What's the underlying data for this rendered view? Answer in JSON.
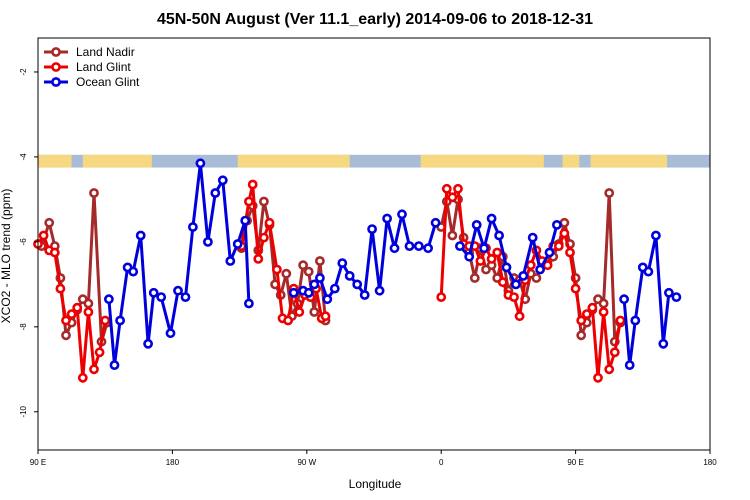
{
  "chart_data": {
    "type": "line",
    "title": "45N-50N August (Ver 11.1_early)   2014-09-06 to 2018-12-31",
    "xlabel": "Longitude",
    "ylabel": "XCO2 - MLO trend (ppm)",
    "xlim": [
      90,
      450
    ],
    "ylim": [
      -10.9,
      -1.2
    ],
    "x_ticks": [
      {
        "value": 90,
        "label": "90 E"
      },
      {
        "value": 162,
        "label": "180"
      },
      {
        "value": 234,
        "label": "90 W"
      },
      {
        "value": 306,
        "label": "0"
      },
      {
        "value": 378,
        "label": "90 E"
      },
      {
        "value": 450,
        "label": "180"
      }
    ],
    "y_ticks": [
      {
        "value": -2,
        "label": "-2"
      },
      {
        "value": -4,
        "label": "-4"
      },
      {
        "value": -6,
        "label": "-6"
      },
      {
        "value": -8,
        "label": "-8"
      },
      {
        "value": -10,
        "label": "-10"
      }
    ],
    "land_band": {
      "y_top": -3.95,
      "y_bottom": -4.25,
      "ocean_color": "#a8bcd8",
      "land_color": "#f5d880"
    },
    "legend_position": "top-left",
    "series": [
      {
        "name": "Land Nadir",
        "color": "#a52a2a",
        "segments": [
          [
            [
              92,
              -6.1
            ],
            [
              96,
              -5.55
            ],
            [
              99,
              -6.1
            ],
            [
              102,
              -6.85
            ],
            [
              105,
              -8.2
            ],
            [
              108,
              -7.9
            ],
            [
              111,
              -7.6
            ],
            [
              114,
              -7.35
            ],
            [
              117,
              -7.45
            ],
            [
              120,
              -4.85
            ],
            [
              124,
              -8.35
            ],
            [
              127,
              -7.9
            ]
          ],
          [
            [
              199,
              -6.15
            ],
            [
              202,
              -5.5
            ],
            [
              205,
              -5.15
            ],
            [
              208,
              -6.2
            ],
            [
              211,
              -5.05
            ],
            [
              214,
              -5.6
            ],
            [
              217,
              -7.0
            ],
            [
              220,
              -7.25
            ],
            [
              223,
              -6.75
            ],
            [
              226,
              -7.75
            ],
            [
              229,
              -7.45
            ],
            [
              232,
              -6.55
            ],
            [
              235,
              -6.7
            ],
            [
              238,
              -7.65
            ],
            [
              241,
              -6.45
            ],
            [
              244,
              -7.85
            ]
          ],
          [
            [
              306,
              -5.65
            ],
            [
              309,
              -5.05
            ],
            [
              312,
              -5.85
            ],
            [
              315,
              -5.0
            ],
            [
              318,
              -5.9
            ],
            [
              321,
              -6.25
            ],
            [
              324,
              -6.85
            ],
            [
              327,
              -6.15
            ],
            [
              330,
              -6.65
            ],
            [
              333,
              -6.55
            ],
            [
              336,
              -6.85
            ],
            [
              339,
              -6.35
            ],
            [
              342,
              -7.15
            ],
            [
              345,
              -6.85
            ],
            [
              348,
              -6.9
            ],
            [
              351,
              -7.35
            ],
            [
              354,
              -6.75
            ],
            [
              357,
              -6.85
            ],
            [
              360,
              -6.5
            ],
            [
              363,
              -6.45
            ],
            [
              366,
              -6.35
            ],
            [
              369,
              -6.05
            ],
            [
              372,
              -5.55
            ],
            [
              375,
              -6.05
            ],
            [
              378,
              -6.85
            ],
            [
              381,
              -8.2
            ],
            [
              384,
              -7.9
            ],
            [
              387,
              -7.6
            ],
            [
              390,
              -7.35
            ],
            [
              393,
              -7.45
            ],
            [
              396,
              -4.85
            ],
            [
              399,
              -8.35
            ],
            [
              402,
              -7.9
            ]
          ]
        ]
      },
      {
        "name": "Land Glint",
        "color": "#ee0000",
        "segments": [
          [
            [
              90,
              -6.05
            ],
            [
              93,
              -5.85
            ],
            [
              96,
              -6.2
            ],
            [
              99,
              -6.25
            ],
            [
              102,
              -7.1
            ],
            [
              105,
              -7.85
            ],
            [
              108,
              -7.7
            ],
            [
              111,
              -7.55
            ],
            [
              114,
              -9.2
            ],
            [
              117,
              -7.65
            ],
            [
              120,
              -9.0
            ],
            [
              123,
              -8.6
            ],
            [
              126,
              -7.85
            ]
          ],
          [
            [
              199,
              -6.1
            ],
            [
              203,
              -5.05
            ],
            [
              205,
              -4.65
            ],
            [
              208,
              -6.4
            ],
            [
              211,
              -5.9
            ],
            [
              214,
              -5.55
            ],
            [
              218,
              -6.65
            ],
            [
              221,
              -7.8
            ],
            [
              224,
              -7.85
            ],
            [
              227,
              -7.1
            ],
            [
              230,
              -7.65
            ],
            [
              233,
              -7.25
            ],
            [
              236,
              -7.3
            ],
            [
              239,
              -7.1
            ],
            [
              242,
              -7.8
            ],
            [
              244,
              -7.75
            ]
          ],
          [
            [
              306,
              -7.3
            ],
            [
              309,
              -4.75
            ],
            [
              312,
              -4.95
            ],
            [
              315,
              -4.75
            ],
            [
              318,
              -6.05
            ],
            [
              321,
              -6.1
            ],
            [
              324,
              -6.1
            ],
            [
              327,
              -6.45
            ],
            [
              330,
              -6.15
            ],
            [
              333,
              -6.4
            ],
            [
              336,
              -6.25
            ],
            [
              339,
              -6.95
            ],
            [
              342,
              -7.25
            ],
            [
              345,
              -7.3
            ],
            [
              348,
              -7.75
            ],
            [
              351,
              -6.9
            ],
            [
              354,
              -6.55
            ],
            [
              357,
              -6.2
            ],
            [
              360,
              -6.45
            ],
            [
              363,
              -6.55
            ],
            [
              366,
              -6.1
            ],
            [
              369,
              -6.1
            ],
            [
              372,
              -5.8
            ],
            [
              375,
              -6.25
            ],
            [
              378,
              -7.1
            ],
            [
              381,
              -7.85
            ],
            [
              384,
              -7.7
            ],
            [
              387,
              -7.55
            ],
            [
              390,
              -9.2
            ],
            [
              393,
              -7.65
            ],
            [
              396,
              -9.0
            ],
            [
              399,
              -8.6
            ],
            [
              402,
              -7.85
            ]
          ]
        ]
      },
      {
        "name": "Ocean Glint",
        "color": "#0000dd",
        "segments": [
          [
            [
              128,
              -7.35
            ],
            [
              131,
              -8.9
            ],
            [
              134,
              -7.85
            ],
            [
              138,
              -6.6
            ],
            [
              141,
              -6.7
            ],
            [
              145,
              -5.85
            ],
            [
              149,
              -8.4
            ],
            [
              152,
              -7.2
            ],
            [
              156,
              -7.3
            ],
            [
              161,
              -8.15
            ],
            [
              165,
              -7.15
            ],
            [
              169,
              -7.3
            ],
            [
              173,
              -5.65
            ],
            [
              177,
              -4.15
            ],
            [
              181,
              -6.0
            ],
            [
              185,
              -4.85
            ],
            [
              189,
              -4.55
            ],
            [
              193,
              -6.45
            ],
            [
              197,
              -6.05
            ],
            [
              201,
              -5.5
            ],
            [
              203,
              -7.45
            ]
          ],
          [
            [
              227,
              -7.2
            ],
            [
              232,
              -7.15
            ],
            [
              235,
              -7.2
            ],
            [
              238,
              -7.0
            ],
            [
              241,
              -6.85
            ],
            [
              245,
              -7.35
            ],
            [
              249,
              -7.1
            ],
            [
              253,
              -6.5
            ],
            [
              257,
              -6.8
            ],
            [
              261,
              -7.0
            ],
            [
              265,
              -7.25
            ],
            [
              269,
              -5.7
            ],
            [
              273,
              -7.15
            ],
            [
              277,
              -5.45
            ],
            [
              281,
              -6.15
            ],
            [
              285,
              -5.35
            ],
            [
              289,
              -6.1
            ],
            [
              294,
              -6.1
            ],
            [
              299,
              -6.15
            ],
            [
              303,
              -5.55
            ]
          ],
          [
            [
              316,
              -6.1
            ],
            [
              321,
              -6.35
            ],
            [
              325,
              -5.6
            ],
            [
              329,
              -6.15
            ],
            [
              333,
              -5.45
            ],
            [
              337,
              -5.85
            ],
            [
              341,
              -6.6
            ],
            [
              346,
              -7.0
            ],
            [
              350,
              -6.8
            ],
            [
              355,
              -5.9
            ],
            [
              359,
              -6.65
            ],
            [
              364,
              -6.25
            ],
            [
              368,
              -5.6
            ]
          ],
          [
            [
              404,
              -7.35
            ],
            [
              407,
              -8.9
            ],
            [
              410,
              -7.85
            ],
            [
              414,
              -6.6
            ],
            [
              417,
              -6.7
            ],
            [
              421,
              -5.85
            ],
            [
              425,
              -8.4
            ],
            [
              428,
              -7.2
            ],
            [
              432,
              -7.3
            ]
          ]
        ]
      }
    ]
  }
}
